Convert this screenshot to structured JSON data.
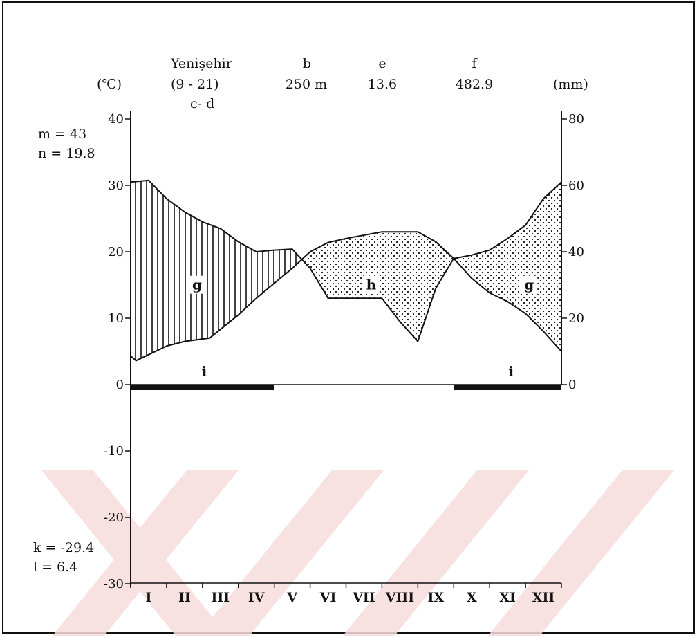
{
  "header": {
    "unit_left": "(℃)",
    "unit_right": "(mm)",
    "station_name": "Yenişehir",
    "station_years": "(9 - 21)",
    "station_sub": "c- d",
    "altitude_key": "b",
    "altitude_value": "250 m",
    "mean_temp_key": "e",
    "mean_temp_value": "13.6",
    "precip_key": "f",
    "precip_value": "482.9"
  },
  "side_notes": {
    "m": "m = 43",
    "n": "n = 19.8",
    "k": "k = -29.4",
    "l": "l = 6.4"
  },
  "region_labels": {
    "dry": "h",
    "humid_left": "g",
    "humid_right": "g",
    "frost_left": "i",
    "frost_right": "i"
  },
  "colors": {
    "stroke": "#111111",
    "background": "#ffffff",
    "watermark": "#f2d4d4"
  },
  "chart_data": {
    "type": "line",
    "title": "",
    "categories": [
      "I",
      "II",
      "III",
      "IV",
      "V",
      "VI",
      "VII",
      "VIII",
      "IX",
      "X",
      "XI",
      "XII"
    ],
    "xlabel": "",
    "ylabel_left": "(℃)",
    "ylabel_right": "(mm)",
    "ylim_left": [
      -30,
      40
    ],
    "ylim_right": [
      0,
      80
    ],
    "yticks_left": [
      "40",
      "30",
      "20",
      "10",
      "0",
      "-10",
      "-20",
      "-30"
    ],
    "yticks_right": [
      "80",
      "60",
      "40",
      "20",
      "0"
    ],
    "series": [
      {
        "axis": "left",
        "x": [
          0,
          0.15,
          1,
          1.5,
          2.2,
          3,
          3.5,
          4.5,
          5,
          5.5,
          6,
          7,
          7.5,
          8,
          8.5,
          9,
          9.5,
          10,
          10.5,
          11,
          11.5,
          12
        ],
        "values": [
          4.3,
          3.6,
          5.8,
          6.5,
          7.0,
          10.5,
          13.0,
          17.5,
          20.0,
          21.4,
          22.0,
          23.0,
          23.0,
          23.0,
          21.5,
          19.0,
          16.0,
          13.8,
          12.5,
          10.7,
          8.0,
          5.0
        ]
      },
      {
        "axis": "right",
        "x": [
          0,
          0.5,
          1,
          1.5,
          2,
          2.5,
          3,
          3.5,
          4,
          4.5,
          5,
          5.5,
          6,
          6.5,
          7,
          7.5,
          8,
          8.5,
          9,
          9.5,
          10,
          10.5,
          11,
          11.5,
          12
        ],
        "values": [
          61,
          61.5,
          56,
          52,
          49,
          47,
          43,
          40,
          40.5,
          40.8,
          35,
          26,
          26,
          26,
          26,
          19,
          13,
          29,
          38,
          39,
          40.5,
          44,
          48,
          56,
          61
        ]
      }
    ],
    "frost_periods": [
      {
        "from": 0,
        "to": 4
      },
      {
        "from": 9,
        "to": 12
      }
    ],
    "grid": false,
    "legend": "none"
  }
}
